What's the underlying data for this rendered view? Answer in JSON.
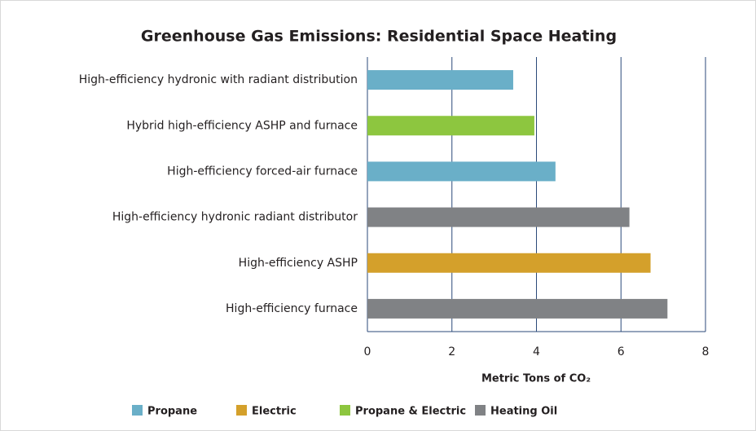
{
  "chart_data": {
    "type": "barh",
    "title": "Greenhouse Gas Emissions: Residential Space Heating",
    "categories": [
      "High-efficiency hydronic with radiant distribution",
      "Hybrid high-efficiency ASHP and furnace",
      "High-efficiency forced-air furnace",
      "High-efficiency hydronic radiant distributor",
      "High-efficiency ASHP",
      "High-efficiency furnace"
    ],
    "values": [
      3.45,
      3.95,
      4.45,
      6.2,
      6.7,
      7.1
    ],
    "colors": [
      "#6aafc8",
      "#8dc63f",
      "#6aafc8",
      "#808285",
      "#d4a02b",
      "#808285"
    ],
    "xlim": [
      0,
      8
    ],
    "xticks": [
      0,
      2,
      4,
      6,
      8
    ],
    "grid": true,
    "xlabel": "Metric Tons of CO₂",
    "legend": [
      {
        "name": "Propane",
        "color": "#6aafc8"
      },
      {
        "name": "Electric",
        "color": "#d4a02b"
      },
      {
        "name": "Propane & Electric",
        "color": "#8dc63f"
      },
      {
        "name": "Heating Oil",
        "color": "#808285"
      }
    ]
  }
}
